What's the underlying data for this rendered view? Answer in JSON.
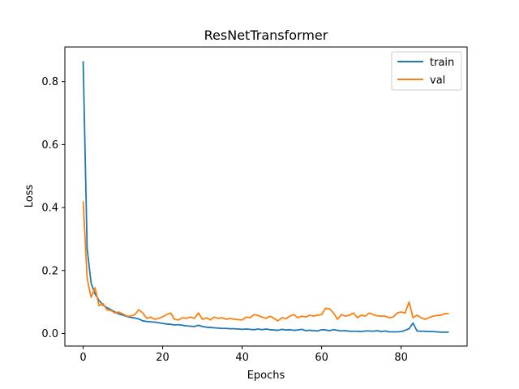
{
  "chart_data": {
    "type": "line",
    "title": "ResNetTransformer",
    "xlabel": "Epochs",
    "ylabel": "Loss",
    "xlim": [
      -4.6,
      96.6
    ],
    "ylim": [
      -0.04,
      0.91
    ],
    "xticks": [
      0,
      20,
      40,
      60,
      80
    ],
    "yticks": [
      0.0,
      0.2,
      0.4,
      0.6,
      0.8
    ],
    "ytick_labels": [
      "0.0",
      "0.2",
      "0.4",
      "0.6",
      "0.8"
    ],
    "grid": false,
    "legend_position": "top-right",
    "x": [
      0,
      1,
      2,
      3,
      4,
      5,
      6,
      7,
      8,
      9,
      10,
      11,
      12,
      13,
      14,
      15,
      16,
      17,
      18,
      19,
      20,
      21,
      22,
      23,
      24,
      25,
      26,
      27,
      28,
      29,
      30,
      31,
      32,
      33,
      34,
      35,
      36,
      37,
      38,
      39,
      40,
      41,
      42,
      43,
      44,
      45,
      46,
      47,
      48,
      49,
      50,
      51,
      52,
      53,
      54,
      55,
      56,
      57,
      58,
      59,
      60,
      61,
      62,
      63,
      64,
      65,
      66,
      67,
      68,
      69,
      70,
      71,
      72,
      73,
      74,
      75,
      76,
      77,
      78,
      79,
      80,
      81,
      82,
      83,
      84,
      85,
      86,
      87,
      88,
      89,
      90,
      91,
      92
    ],
    "series": [
      {
        "name": "train",
        "color": "#1f77b4",
        "values": [
          0.865,
          0.27,
          0.16,
          0.125,
          0.105,
          0.09,
          0.082,
          0.075,
          0.068,
          0.062,
          0.058,
          0.054,
          0.051,
          0.049,
          0.046,
          0.04,
          0.038,
          0.037,
          0.036,
          0.034,
          0.032,
          0.03,
          0.029,
          0.027,
          0.028,
          0.026,
          0.024,
          0.023,
          0.022,
          0.026,
          0.022,
          0.02,
          0.019,
          0.018,
          0.017,
          0.016,
          0.016,
          0.015,
          0.015,
          0.014,
          0.013,
          0.014,
          0.013,
          0.012,
          0.014,
          0.012,
          0.014,
          0.012,
          0.011,
          0.01,
          0.013,
          0.011,
          0.012,
          0.01,
          0.011,
          0.013,
          0.009,
          0.01,
          0.009,
          0.008,
          0.012,
          0.011,
          0.009,
          0.012,
          0.01,
          0.008,
          0.009,
          0.007,
          0.007,
          0.007,
          0.006,
          0.008,
          0.008,
          0.007,
          0.009,
          0.006,
          0.008,
          0.005,
          0.005,
          0.005,
          0.006,
          0.01,
          0.015,
          0.033,
          0.008,
          0.007,
          0.007,
          0.006,
          0.006,
          0.005,
          0.004,
          0.004,
          0.004
        ]
      },
      {
        "name": "val",
        "color": "#ff7f0e",
        "values": [
          0.42,
          0.175,
          0.115,
          0.145,
          0.088,
          0.095,
          0.075,
          0.073,
          0.065,
          0.068,
          0.062,
          0.055,
          0.055,
          0.06,
          0.075,
          0.065,
          0.048,
          0.052,
          0.045,
          0.048,
          0.053,
          0.06,
          0.065,
          0.045,
          0.043,
          0.05,
          0.048,
          0.052,
          0.048,
          0.065,
          0.045,
          0.05,
          0.043,
          0.052,
          0.048,
          0.05,
          0.045,
          0.048,
          0.045,
          0.044,
          0.043,
          0.052,
          0.05,
          0.06,
          0.057,
          0.052,
          0.048,
          0.055,
          0.048,
          0.04,
          0.05,
          0.047,
          0.055,
          0.06,
          0.05,
          0.055,
          0.052,
          0.058,
          0.055,
          0.058,
          0.06,
          0.08,
          0.078,
          0.065,
          0.045,
          0.06,
          0.055,
          0.058,
          0.065,
          0.05,
          0.058,
          0.055,
          0.065,
          0.06,
          0.056,
          0.055,
          0.055,
          0.05,
          0.052,
          0.065,
          0.068,
          0.065,
          0.1,
          0.05,
          0.058,
          0.05,
          0.045,
          0.05,
          0.055,
          0.057,
          0.058,
          0.063,
          0.063
        ]
      }
    ]
  }
}
